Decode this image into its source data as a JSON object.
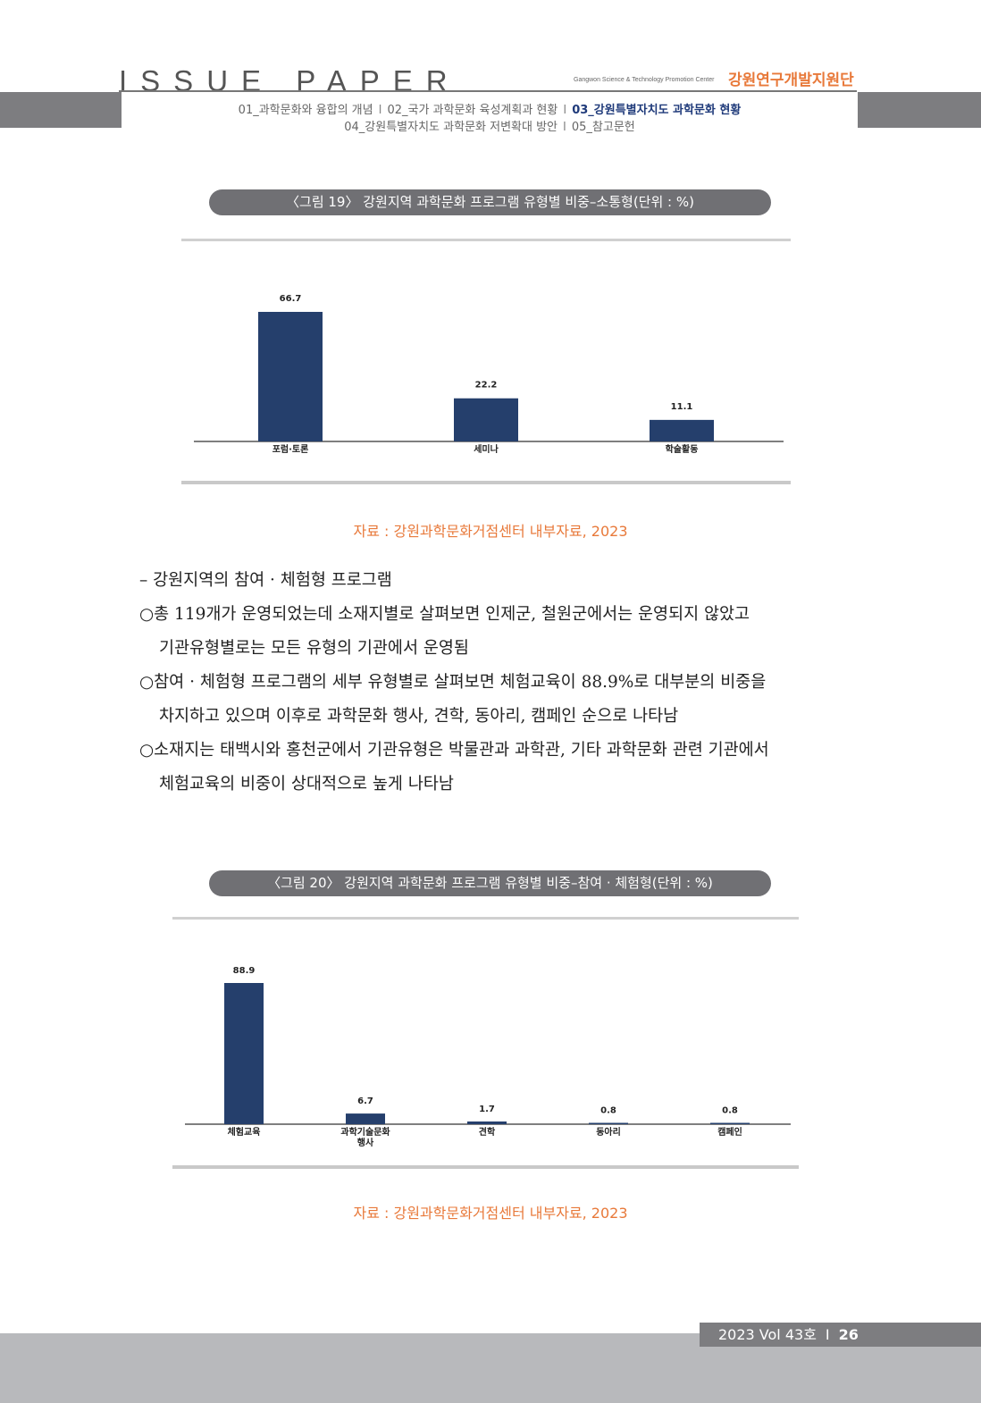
{
  "header": {
    "title": "ISSUE PAPER",
    "org_en": "Gangwon Science & Technology Promotion Center",
    "org_ko": "강원연구개발지원단",
    "nav": [
      "01_과학문화와 융합의 개념",
      "02_국가 과학문화 육성계획과 현황",
      "03_강원특별자치도 과학문화 현황",
      "04_강원특별자치도 과학문화 저변확대 방안",
      "05_참고문헌"
    ],
    "nav_separator": "I"
  },
  "figure19": {
    "caption": "〈그림 19〉 강원지역 과학문화 프로그램 유형별 비중–소통형(단위 : %)",
    "source": "자료 : 강원과학문화거점센터 내부자료, 2023"
  },
  "body": {
    "heading": "– 강원지역의 참여 · 체험형 프로그램",
    "bullets": [
      [
        "○총 119개가 운영되었는데 소재지별로 살펴보면 인제군, 철원군에서는 운영되지 않았고",
        "기관유형별로는 모든 유형의 기관에서 운영됨"
      ],
      [
        "○참여 · 체험형 프로그램의 세부 유형별로 살펴보면 체험교육이 88.9%로 대부분의 비중을",
        "차지하고 있으며 이후로 과학문화 행사, 견학, 동아리, 캠페인 순으로 나타남"
      ],
      [
        "○소재지는 태백시와 홍천군에서 기관유형은 박물관과 과학관, 기타 과학문화 관련 기관에서",
        "체험교육의 비중이 상대적으로 높게 나타남"
      ]
    ]
  },
  "figure20": {
    "caption": "〈그림 20〉 강원지역 과학문화 프로그램 유형별 비중–참여 · 체험형(단위 : %)",
    "source": "자료 : 강원과학문화거점센터 내부자료, 2023"
  },
  "footer": {
    "volume": "2023 Vol 43호",
    "separator": "I",
    "page": "26"
  },
  "colors": {
    "bar": "#253f6c",
    "accent": "#e8793a",
    "nav_active": "#1f3a7a",
    "gray_band": "#7d7d80"
  },
  "chart_data": [
    {
      "type": "bar",
      "categories": [
        "포럼·토론",
        "세미나",
        "학술활동"
      ],
      "values": [
        66.7,
        22.2,
        11.1
      ],
      "title": "",
      "xlabel": "",
      "ylabel": "",
      "ylim": [
        0,
        66.7
      ],
      "grid": false,
      "legend": "none"
    },
    {
      "type": "bar",
      "categories": [
        "체험교육",
        "과학기술문화\n행사",
        "견학",
        "동아리",
        "캠페인"
      ],
      "values": [
        88.9,
        6.7,
        1.7,
        0.8,
        0.8
      ],
      "title": "",
      "xlabel": "",
      "ylabel": "",
      "ylim": [
        0,
        88.9
      ],
      "grid": false,
      "legend": "none"
    }
  ]
}
